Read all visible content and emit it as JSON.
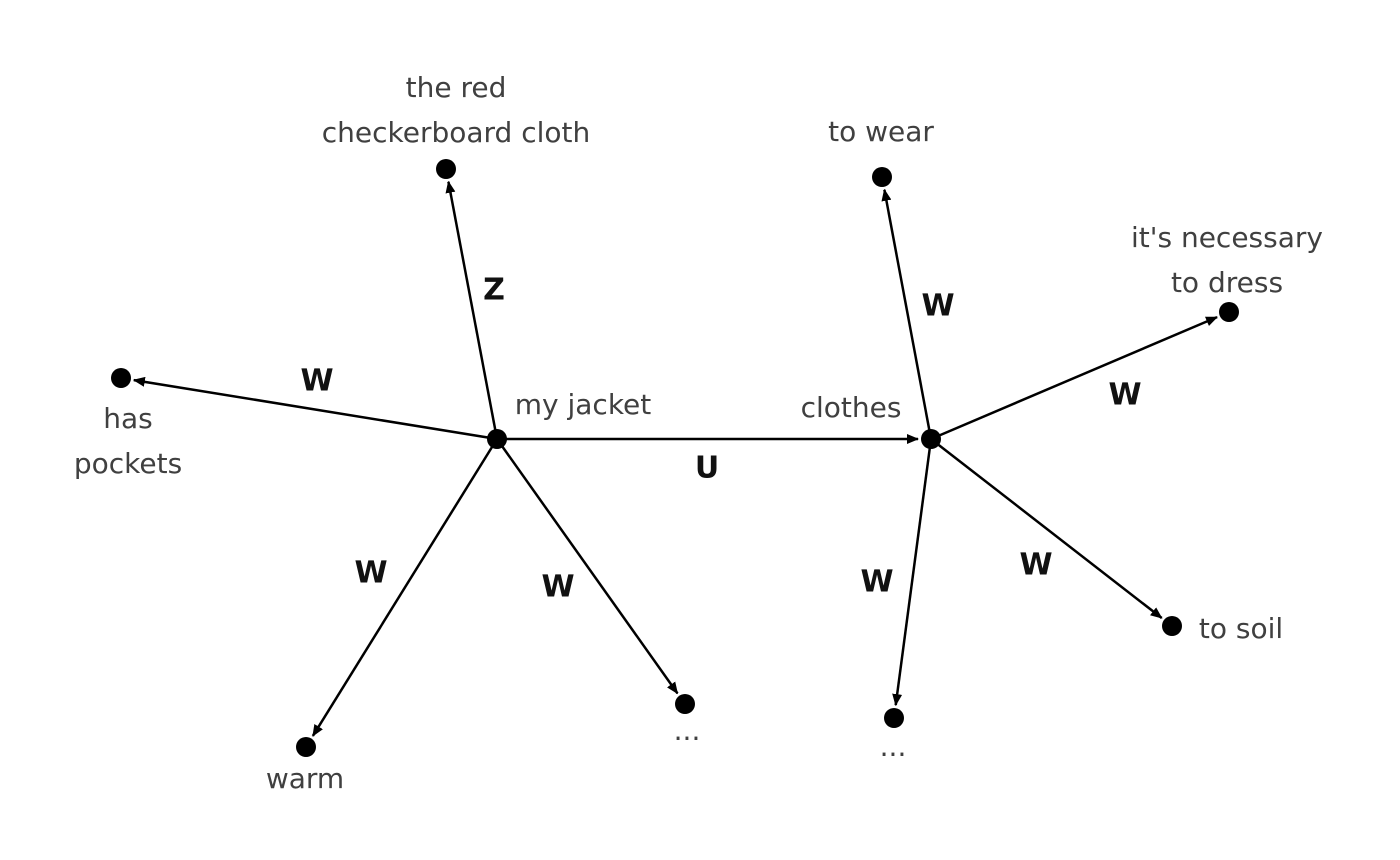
{
  "nodes": [
    {
      "id": "my_jacket",
      "label_lines": [
        "my jacket"
      ]
    },
    {
      "id": "clothes",
      "label_lines": [
        "clothes"
      ]
    },
    {
      "id": "checkerboard",
      "label_lines": [
        "the red",
        "checkerboard cloth"
      ]
    },
    {
      "id": "has_pockets",
      "label_lines": [
        "has",
        "pockets"
      ]
    },
    {
      "id": "warm",
      "label_lines": [
        "warm"
      ]
    },
    {
      "id": "jacket_more",
      "label_lines": [
        "..."
      ]
    },
    {
      "id": "to_wear",
      "label_lines": [
        "to wear"
      ]
    },
    {
      "id": "necessary",
      "label_lines": [
        "it's necessary",
        "to dress"
      ]
    },
    {
      "id": "to_soil",
      "label_lines": [
        "to soil"
      ]
    },
    {
      "id": "clothes_more",
      "label_lines": [
        "..."
      ]
    }
  ],
  "edges": [
    {
      "id": "e_checkerboard",
      "from": "my_jacket",
      "to": "checkerboard",
      "label": "Z"
    },
    {
      "id": "e_pockets",
      "from": "my_jacket",
      "to": "has_pockets",
      "label": "W"
    },
    {
      "id": "e_warm",
      "from": "my_jacket",
      "to": "warm",
      "label": "W"
    },
    {
      "id": "e_jacket_more",
      "from": "my_jacket",
      "to": "jacket_more",
      "label": "W"
    },
    {
      "id": "e_clothes",
      "from": "my_jacket",
      "to": "clothes",
      "label": "U"
    },
    {
      "id": "e_wear",
      "from": "clothes",
      "to": "to_wear",
      "label": "W"
    },
    {
      "id": "e_necessary",
      "from": "clothes",
      "to": "necessary",
      "label": "W"
    },
    {
      "id": "e_soil",
      "from": "clothes",
      "to": "to_soil",
      "label": "W"
    },
    {
      "id": "e_clothes_more",
      "from": "clothes",
      "to": "clothes_more",
      "label": "W"
    }
  ]
}
